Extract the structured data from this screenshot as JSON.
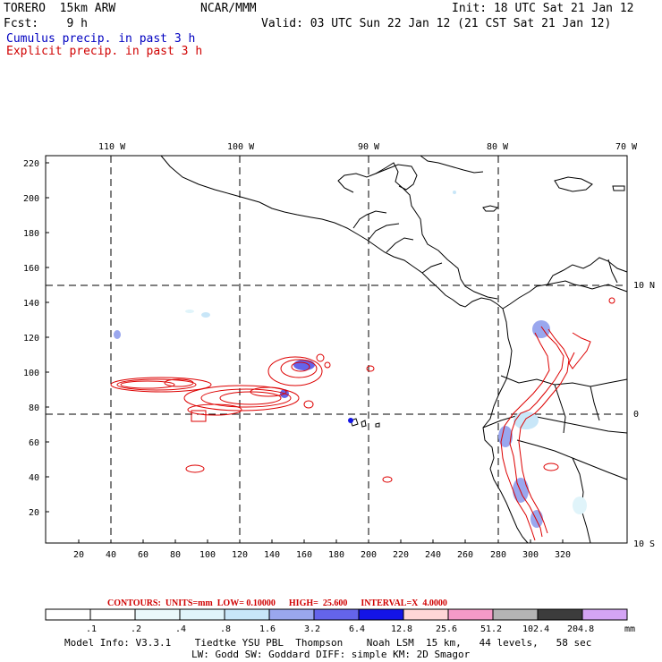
{
  "header": {
    "model": "TORERO  15km ARW",
    "org": "NCAR/MMM",
    "init": "Init: 18 UTC Sat 21 Jan 12",
    "fcst": "Fcst:    9 h",
    "valid": "Valid: 03 UTC Sun 22 Jan 12 (21 CST Sat 21 Jan 12)",
    "cumulus": "Cumulus precip. in past 3 h",
    "explicit": "Explicit precip. in past 3 h"
  },
  "axes": {
    "lon_labels": [
      "110 W",
      "100 W",
      "90 W",
      "80 W",
      "70 W"
    ],
    "lat_labels": [
      "10 N",
      "0",
      "10 S"
    ],
    "y_ticks": [
      "220",
      "200",
      "180",
      "160",
      "140",
      "120",
      "100",
      "80",
      "60",
      "40",
      "20"
    ],
    "x_ticks": [
      "20",
      "40",
      "60",
      "80",
      "100",
      "120",
      "140",
      "160",
      "180",
      "200",
      "220",
      "240",
      "260",
      "280",
      "300",
      "320"
    ]
  },
  "contours": {
    "label": "CONTOURS:  UNITS=mm  LOW= 0.10000      HIGH=  25.600      INTERVAL=X  4.0000"
  },
  "colorbar": {
    "labels": [
      ".1",
      ".2",
      ".4",
      ".8",
      "1.6",
      "3.2",
      "6.4",
      "12.8",
      "25.6",
      "51.2",
      "102.4",
      "204.8"
    ],
    "unit": "mm",
    "colors": [
      "#ffffff",
      "#ffffff",
      "#eaf8fb",
      "#e0f4fa",
      "#c8e6f8",
      "#9aa7ee",
      "#6464ea",
      "#1414e6",
      "#ffd6d6",
      "#f59ac8",
      "#b4b4b4",
      "#3c3c3c",
      "#d4a4f4"
    ]
  },
  "footer": {
    "line1": "Model Info: V3.3.1    Tiedtke YSU PBL  Thompson    Noah LSM  15 km,   44 levels,   58 sec",
    "line2": "LW: Godd SW: Goddard DIFF: simple KM: 2D Smagor"
  }
}
